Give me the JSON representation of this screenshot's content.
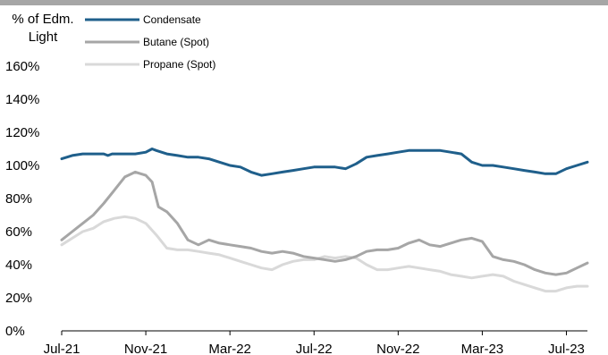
{
  "chart_data": {
    "type": "line",
    "ylabel": "% of Edm. Light",
    "yticks": [
      "0%",
      "20%",
      "40%",
      "60%",
      "80%",
      "100%",
      "120%",
      "140%",
      "160%"
    ],
    "ylim": [
      0,
      160
    ],
    "xticks": [
      "Jul-21",
      "Nov-21",
      "Mar-22",
      "Jul-22",
      "Nov-22",
      "Mar-23",
      "Jul-23"
    ],
    "x_unit": "months since Jul-21",
    "xlim": [
      0,
      25
    ],
    "series": [
      {
        "name": "Condensate",
        "color": "#1f5f8b",
        "x": [
          0,
          0.5,
          1,
          1.5,
          2,
          2.2,
          2.4,
          3,
          3.5,
          4,
          4.3,
          4.5,
          5,
          5.5,
          6,
          6.5,
          7,
          7.5,
          8,
          8.5,
          9,
          9.5,
          10,
          10.5,
          11,
          11.5,
          12,
          12.5,
          13,
          13.5,
          14,
          14.5,
          15,
          15.5,
          16,
          16.5,
          17,
          17.5,
          18,
          18.5,
          19,
          19.5,
          20,
          20.5,
          21,
          21.5,
          22,
          22.5,
          23,
          23.5,
          24,
          24.5,
          25
        ],
        "values": [
          104,
          106,
          107,
          107,
          107,
          106,
          107,
          107,
          107,
          108,
          110,
          109,
          107,
          106,
          105,
          105,
          104,
          102,
          100,
          99,
          96,
          94,
          95,
          96,
          97,
          98,
          99,
          99,
          99,
          98,
          101,
          105,
          106,
          107,
          108,
          109,
          109,
          109,
          109,
          108,
          107,
          102,
          100,
          100,
          99,
          98,
          97,
          96,
          95,
          95,
          98,
          100,
          102
        ]
      },
      {
        "name": "Butane (Spot)",
        "color": "#a6a6a6",
        "x": [
          0,
          0.5,
          1,
          1.5,
          2,
          2.5,
          3,
          3.5,
          4,
          4.3,
          4.6,
          5,
          5.5,
          6,
          6.5,
          7,
          7.5,
          8,
          8.5,
          9,
          9.5,
          10,
          10.5,
          11,
          11.5,
          12,
          12.5,
          13,
          13.5,
          14,
          14.5,
          15,
          15.5,
          16,
          16.5,
          17,
          17.5,
          18,
          18.5,
          19,
          19.5,
          20,
          20.5,
          21,
          21.5,
          22,
          22.5,
          23,
          23.5,
          24,
          24.5,
          25
        ],
        "values": [
          55,
          60,
          65,
          70,
          77,
          85,
          93,
          96,
          94,
          90,
          75,
          72,
          65,
          55,
          52,
          55,
          53,
          52,
          51,
          50,
          48,
          47,
          48,
          47,
          45,
          44,
          43,
          42,
          43,
          45,
          48,
          49,
          49,
          50,
          53,
          55,
          52,
          51,
          53,
          55,
          56,
          54,
          45,
          43,
          42,
          40,
          37,
          35,
          34,
          35,
          38,
          41
        ]
      },
      {
        "name": "Propane (Spot)",
        "color": "#d9d9d9",
        "x": [
          0,
          0.5,
          1,
          1.5,
          2,
          2.5,
          3,
          3.5,
          4,
          4.5,
          5,
          5.5,
          6,
          6.5,
          7,
          7.5,
          8,
          8.5,
          9,
          9.5,
          10,
          10.5,
          11,
          11.5,
          12,
          12.5,
          13,
          13.5,
          14,
          14.5,
          15,
          15.5,
          16,
          16.5,
          17,
          17.5,
          18,
          18.5,
          19,
          19.5,
          20,
          20.5,
          21,
          21.5,
          22,
          22.5,
          23,
          23.5,
          24,
          24.5,
          25
        ],
        "values": [
          52,
          56,
          60,
          62,
          66,
          68,
          69,
          68,
          65,
          58,
          50,
          49,
          49,
          48,
          47,
          46,
          44,
          42,
          40,
          38,
          37,
          40,
          42,
          43,
          43,
          45,
          44,
          45,
          44,
          40,
          37,
          37,
          38,
          39,
          38,
          37,
          36,
          34,
          33,
          32,
          33,
          34,
          33,
          30,
          28,
          26,
          24,
          24,
          26,
          27,
          27
        ]
      }
    ]
  }
}
